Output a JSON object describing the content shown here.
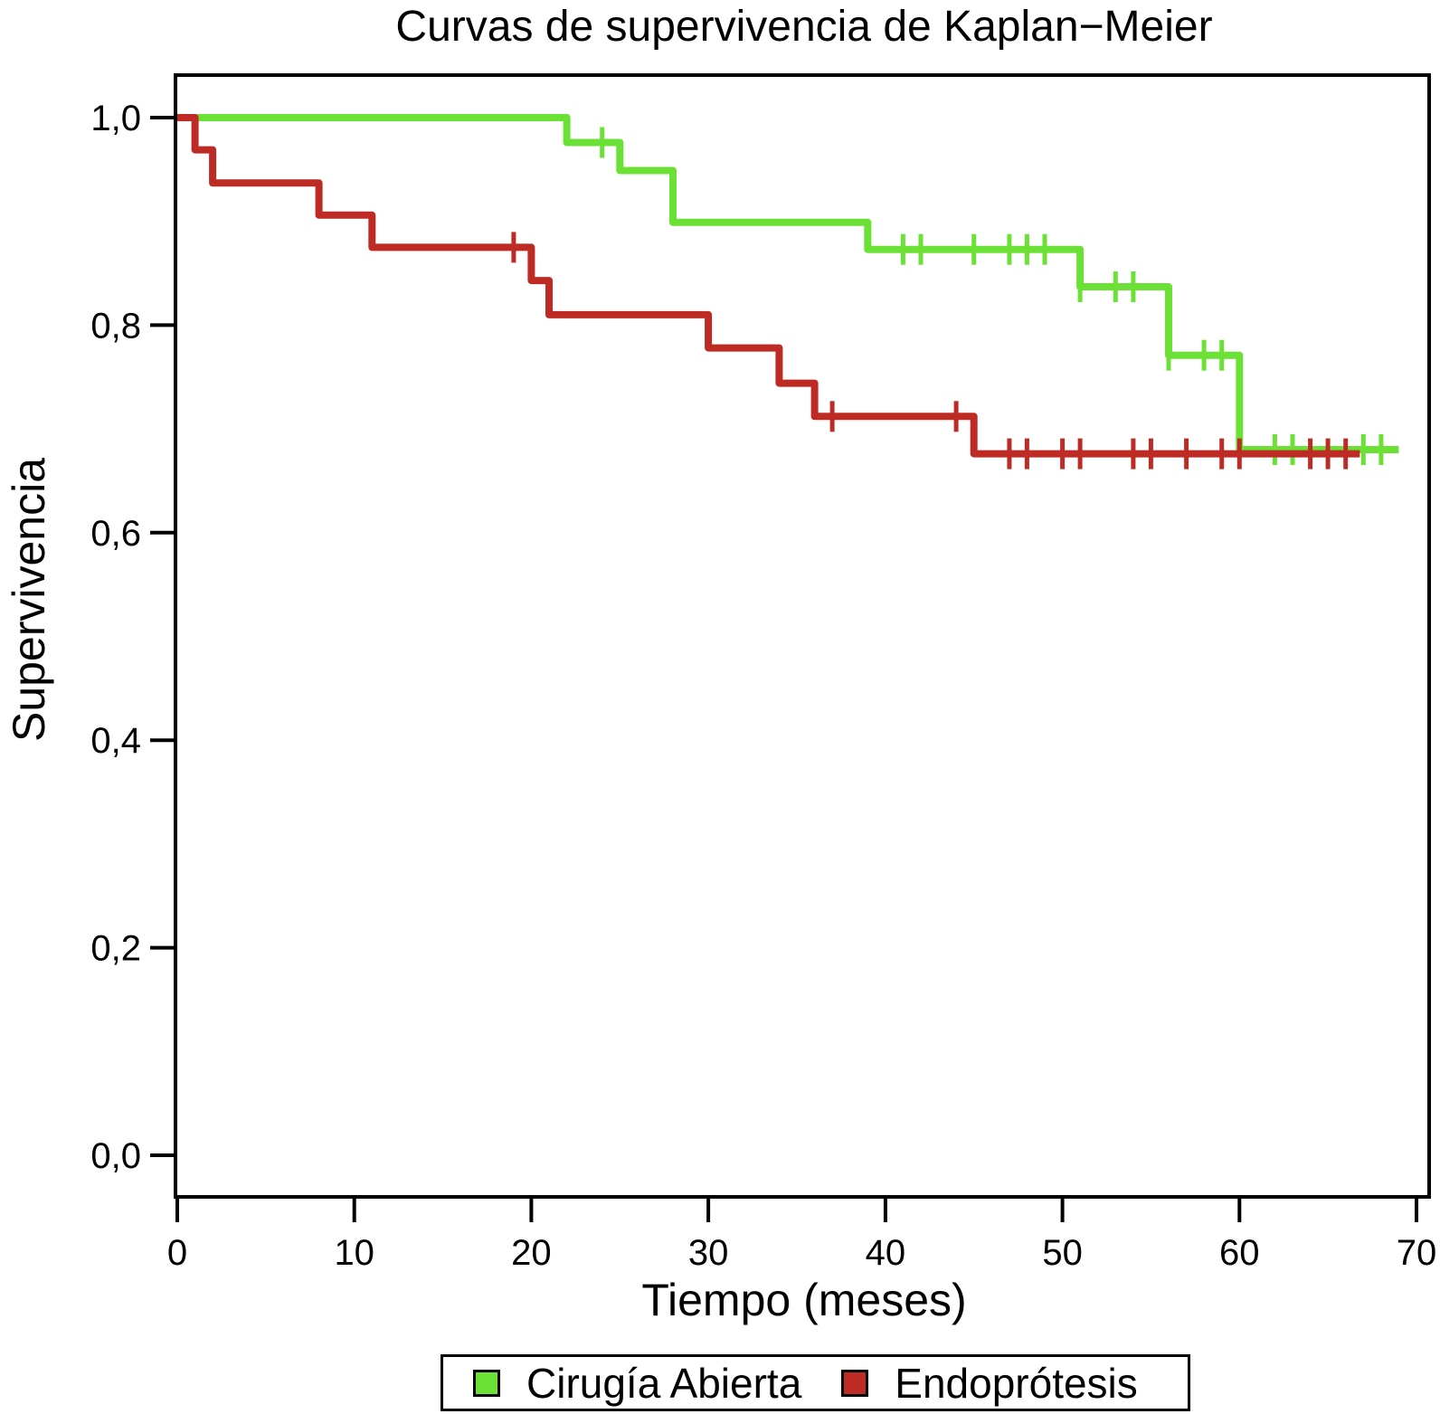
{
  "chart_data": {
    "type": "line",
    "chart_kind": "kaplan-meier-step",
    "title": "Curvas de supervivencia de Kaplan−Meier",
    "xlabel": "Tiempo (meses)",
    "ylabel": "Supervivencia",
    "xlim": [
      0,
      70
    ],
    "ylim": [
      0.0,
      1.0
    ],
    "x_ticks": [
      0,
      10,
      20,
      30,
      40,
      50,
      60,
      70
    ],
    "y_ticks": [
      0.0,
      0.2,
      0.4,
      0.6,
      0.8,
      1.0
    ],
    "y_tick_labels": [
      "0,0",
      "0,2",
      "0,4",
      "0,6",
      "0,8",
      "1,0"
    ],
    "grid": false,
    "frame": true,
    "legend_position": "bottom",
    "series": [
      {
        "name": "Cirugía Abierta",
        "color": "#6CE135",
        "start": [
          0,
          1.0
        ],
        "steps": [
          [
            22,
            0.976
          ],
          [
            25,
            0.949
          ],
          [
            28,
            0.899
          ],
          [
            39,
            0.873
          ],
          [
            51,
            0.837
          ],
          [
            56,
            0.771
          ],
          [
            60,
            0.68
          ]
        ],
        "end_x": 69,
        "censor_marks": [
          [
            24,
            0.976
          ],
          [
            41,
            0.873
          ],
          [
            42,
            0.873
          ],
          [
            45,
            0.873
          ],
          [
            47,
            0.873
          ],
          [
            48,
            0.873
          ],
          [
            49,
            0.873
          ],
          [
            51,
            0.837
          ],
          [
            53,
            0.837
          ],
          [
            54,
            0.837
          ],
          [
            56,
            0.771
          ],
          [
            58,
            0.771
          ],
          [
            59,
            0.771
          ],
          [
            62,
            0.68
          ],
          [
            63,
            0.68
          ],
          [
            67,
            0.68
          ],
          [
            68,
            0.68
          ]
        ]
      },
      {
        "name": "Endoprótesis",
        "color": "#BE2A24",
        "start": [
          0,
          1.0
        ],
        "steps": [
          [
            1,
            0.969
          ],
          [
            2,
            0.937
          ],
          [
            8,
            0.906
          ],
          [
            11,
            0.875
          ],
          [
            20,
            0.843
          ],
          [
            21,
            0.81
          ],
          [
            30,
            0.778
          ],
          [
            34,
            0.744
          ],
          [
            36,
            0.712
          ],
          [
            45,
            0.676
          ]
        ],
        "end_x": 66.8,
        "censor_marks": [
          [
            19,
            0.875
          ],
          [
            37,
            0.712
          ],
          [
            44,
            0.712
          ],
          [
            47,
            0.676
          ],
          [
            48,
            0.676
          ],
          [
            50,
            0.676
          ],
          [
            51,
            0.676
          ],
          [
            54,
            0.676
          ],
          [
            55,
            0.676
          ],
          [
            57,
            0.676
          ],
          [
            59,
            0.676
          ],
          [
            60,
            0.676
          ],
          [
            64,
            0.676
          ],
          [
            65,
            0.676
          ],
          [
            66,
            0.676
          ]
        ]
      }
    ]
  },
  "legend": {
    "items": [
      {
        "label": "Cirugía Abierta",
        "color": "#6CE135",
        "swatch_border": "#000000"
      },
      {
        "label": "Endoprótesis",
        "color": "#BE2A24",
        "swatch_border": "#000000"
      }
    ]
  },
  "colors": {
    "axis": "#000000",
    "text": "#000000",
    "background": "#FFFFFF"
  }
}
